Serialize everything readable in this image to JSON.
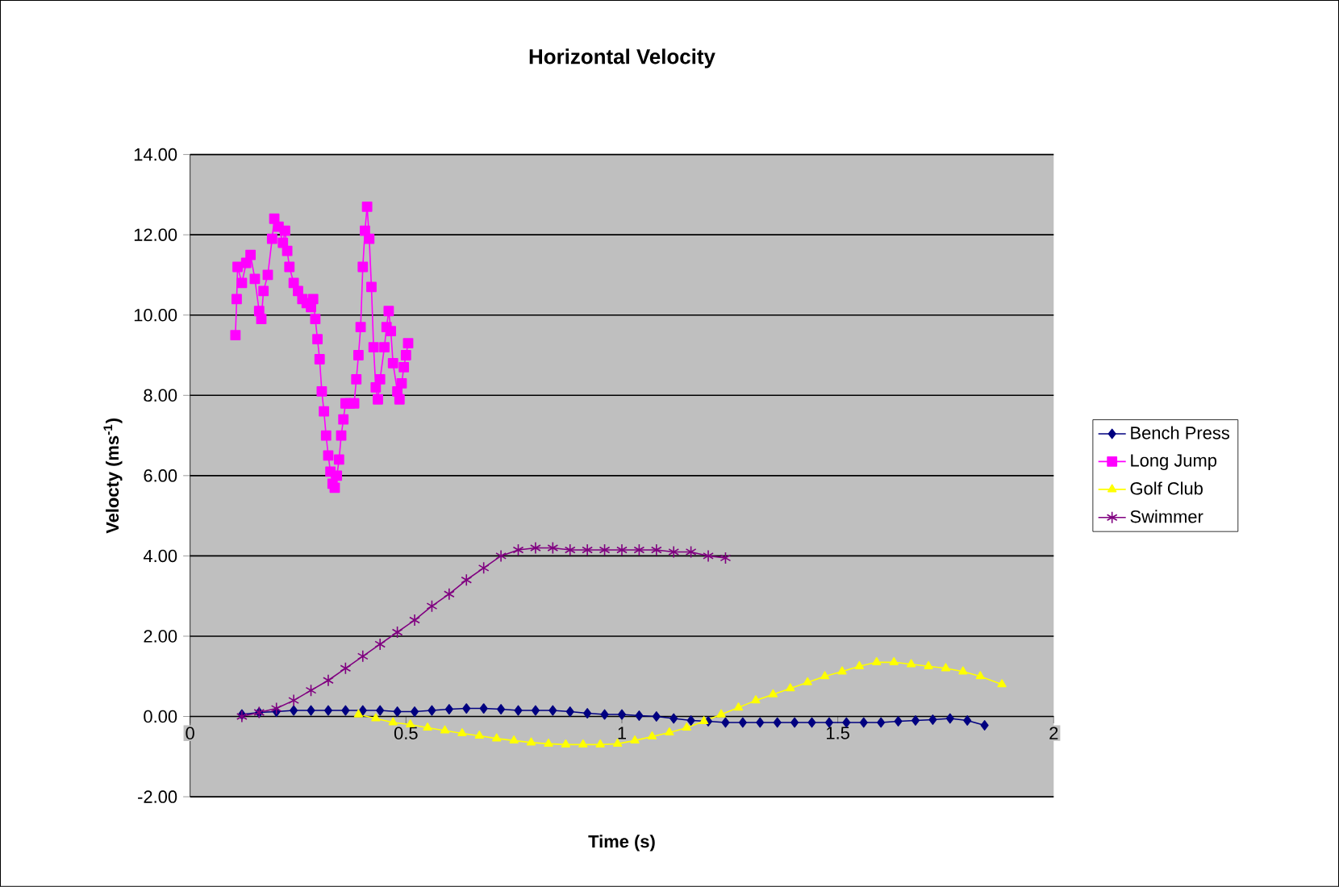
{
  "chart_data": {
    "type": "line",
    "title": "Horizontal Velocity",
    "xlabel": "Time (s)",
    "ylabel": "Velocty (ms$^{-1}$)",
    "xlim": [
      0,
      2
    ],
    "xticks": [
      0,
      0.5,
      1,
      1.5,
      2
    ],
    "ylim": [
      -2,
      14
    ],
    "yticks": [
      {
        "value": -2,
        "label": "-2.00"
      },
      {
        "value": 0,
        "label": "0.00"
      },
      {
        "value": 2,
        "label": "2.00"
      },
      {
        "value": 4,
        "label": "4.00"
      },
      {
        "value": 6,
        "label": "6.00"
      },
      {
        "value": 8,
        "label": "8.00"
      },
      {
        "value": 10,
        "label": "10.00"
      },
      {
        "value": 12,
        "label": "12.00"
      },
      {
        "value": 14,
        "label": "14.00"
      }
    ],
    "grid": "y",
    "legend": "right",
    "line_style": "solid",
    "series": [
      {
        "name": "Bench Press",
        "color": "#000080",
        "marker": "diamond",
        "x": [
          0.12,
          0.16,
          0.2,
          0.24,
          0.28,
          0.32,
          0.36,
          0.4,
          0.44,
          0.48,
          0.52,
          0.56,
          0.6,
          0.64,
          0.68,
          0.72,
          0.76,
          0.8,
          0.84,
          0.88,
          0.92,
          0.96,
          1.0,
          1.04,
          1.08,
          1.12,
          1.16,
          1.2,
          1.24,
          1.28,
          1.32,
          1.36,
          1.4,
          1.44,
          1.48,
          1.52,
          1.56,
          1.6,
          1.64,
          1.68,
          1.72,
          1.76,
          1.8,
          1.84
        ],
        "values": [
          0.05,
          0.1,
          0.12,
          0.15,
          0.15,
          0.15,
          0.15,
          0.15,
          0.15,
          0.12,
          0.12,
          0.15,
          0.18,
          0.2,
          0.2,
          0.18,
          0.15,
          0.15,
          0.15,
          0.12,
          0.08,
          0.05,
          0.05,
          0.02,
          0.0,
          -0.05,
          -0.1,
          -0.12,
          -0.15,
          -0.15,
          -0.15,
          -0.15,
          -0.15,
          -0.15,
          -0.15,
          -0.15,
          -0.15,
          -0.15,
          -0.12,
          -0.1,
          -0.08,
          -0.05,
          -0.1,
          -0.22
        ]
      },
      {
        "name": "Long Jump",
        "color": "#ff00ff",
        "marker": "square",
        "x": [
          0.105,
          0.108,
          0.11,
          0.12,
          0.13,
          0.14,
          0.15,
          0.16,
          0.165,
          0.17,
          0.18,
          0.19,
          0.195,
          0.205,
          0.215,
          0.22,
          0.225,
          0.23,
          0.24,
          0.25,
          0.26,
          0.27,
          0.28,
          0.285,
          0.29,
          0.295,
          0.3,
          0.305,
          0.31,
          0.315,
          0.32,
          0.325,
          0.33,
          0.335,
          0.34,
          0.345,
          0.35,
          0.355,
          0.36,
          0.37,
          0.38,
          0.385,
          0.39,
          0.395,
          0.4,
          0.405,
          0.41,
          0.415,
          0.42,
          0.425,
          0.43,
          0.435,
          0.44,
          0.45,
          0.455,
          0.46,
          0.465,
          0.47,
          0.48,
          0.485,
          0.49,
          0.495,
          0.5,
          0.505
        ],
        "values": [
          9.5,
          10.4,
          11.2,
          10.8,
          11.3,
          11.5,
          10.9,
          10.1,
          9.9,
          10.6,
          11.0,
          11.9,
          12.4,
          12.2,
          11.8,
          12.1,
          11.6,
          11.2,
          10.8,
          10.6,
          10.4,
          10.3,
          10.2,
          10.4,
          9.9,
          9.4,
          8.9,
          8.1,
          7.6,
          7.0,
          6.5,
          6.1,
          5.8,
          5.7,
          6.0,
          6.4,
          7.0,
          7.4,
          7.8,
          7.8,
          7.8,
          8.4,
          9.0,
          9.7,
          11.2,
          12.1,
          12.7,
          11.9,
          10.7,
          9.2,
          8.2,
          7.9,
          8.4,
          9.2,
          9.7,
          10.1,
          9.6,
          8.8,
          8.1,
          7.9,
          8.3,
          8.7,
          9.0,
          9.3
        ]
      },
      {
        "name": "Golf Club",
        "color": "#ffff00",
        "marker": "triangle",
        "x": [
          0.39,
          0.43,
          0.47,
          0.51,
          0.55,
          0.59,
          0.63,
          0.67,
          0.71,
          0.75,
          0.79,
          0.83,
          0.87,
          0.91,
          0.95,
          0.99,
          1.03,
          1.07,
          1.11,
          1.15,
          1.19,
          1.23,
          1.27,
          1.31,
          1.35,
          1.39,
          1.43,
          1.47,
          1.51,
          1.55,
          1.59,
          1.63,
          1.67,
          1.71,
          1.75,
          1.79,
          1.83,
          1.88
        ],
        "values": [
          0.05,
          -0.05,
          -0.15,
          -0.2,
          -0.28,
          -0.35,
          -0.42,
          -0.48,
          -0.55,
          -0.6,
          -0.65,
          -0.68,
          -0.7,
          -0.7,
          -0.7,
          -0.68,
          -0.6,
          -0.5,
          -0.4,
          -0.28,
          -0.12,
          0.05,
          0.22,
          0.4,
          0.55,
          0.7,
          0.85,
          1.0,
          1.12,
          1.25,
          1.35,
          1.35,
          1.3,
          1.25,
          1.2,
          1.12,
          1.0,
          0.8
        ]
      },
      {
        "name": "Swimmer",
        "color": "#800080",
        "marker": "cross",
        "x": [
          0.12,
          0.16,
          0.2,
          0.24,
          0.28,
          0.32,
          0.36,
          0.4,
          0.44,
          0.48,
          0.52,
          0.56,
          0.6,
          0.64,
          0.68,
          0.72,
          0.76,
          0.8,
          0.84,
          0.88,
          0.92,
          0.96,
          1.0,
          1.04,
          1.08,
          1.12,
          1.16,
          1.2,
          1.24
        ],
        "values": [
          0.0,
          0.1,
          0.2,
          0.4,
          0.65,
          0.9,
          1.2,
          1.5,
          1.8,
          2.1,
          2.4,
          2.75,
          3.05,
          3.4,
          3.7,
          4.0,
          4.15,
          4.2,
          4.2,
          4.15,
          4.15,
          4.15,
          4.15,
          4.15,
          4.15,
          4.1,
          4.1,
          4.0,
          3.95
        ]
      }
    ]
  }
}
